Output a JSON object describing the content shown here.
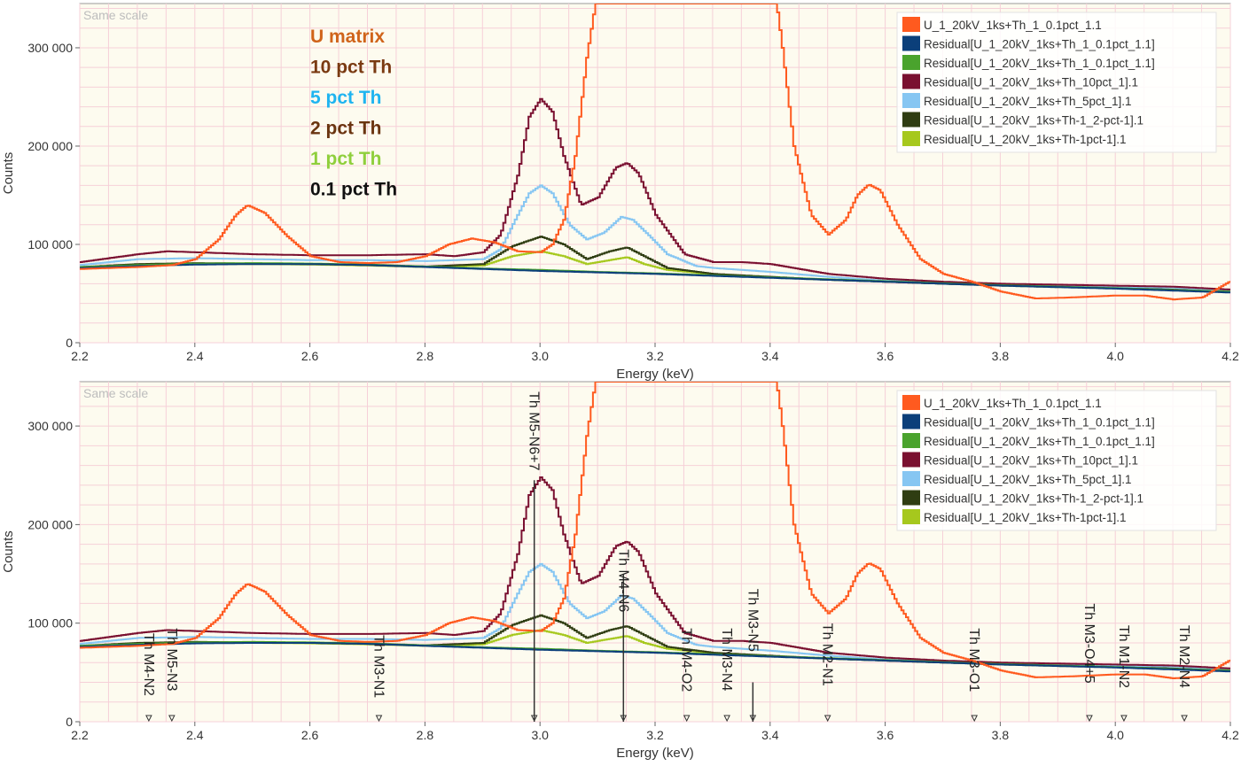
{
  "colors": {
    "u_matrix": "#ff5a1f",
    "res_blue": "#0b3f7a",
    "res_green": "#4aa32d",
    "th10": "#7a1030",
    "th5": "#86c6f2",
    "th2": "#2f3d12",
    "th1": "#a6c81d",
    "annot_u": "#d0641a",
    "annot_10": "#7a3a12",
    "annot_5": "#1fb4f0",
    "annot_2": "#6a3410",
    "annot_1": "#8fcf3c",
    "annot_01": "#111111"
  },
  "chart_data": [
    {
      "type": "line",
      "panel_note": "Same scale",
      "xlabel": "Energy (keV)",
      "ylabel": "Counts",
      "xlim": [
        2.2,
        4.2
      ],
      "ylim": [
        0,
        345000
      ],
      "x_ticks": [
        "2.2",
        "2.4",
        "2.6",
        "2.8",
        "3.0",
        "3.2",
        "3.4",
        "3.6",
        "3.8",
        "4.0",
        "4.2"
      ],
      "y_ticks": [
        "0",
        "100 000",
        "200 000",
        "300 000"
      ],
      "annotations": [
        {
          "text": "U matrix",
          "color_key": "annot_u"
        },
        {
          "text": "10 pct Th",
          "color_key": "annot_10"
        },
        {
          "text": "5 pct Th",
          "color_key": "annot_5"
        },
        {
          "text": "2 pct Th",
          "color_key": "annot_2"
        },
        {
          "text": "1 pct Th",
          "color_key": "annot_1"
        },
        {
          "text": "0.1 pct Th",
          "color_key": "annot_01"
        }
      ],
      "legend_position": "top-right",
      "legend": [
        "U_1_20kV_1ks+Th_1_0.1pct_1.1",
        "Residual[U_1_20kV_1ks+Th_1_0.1pct_1.1]",
        "Residual[U_1_20kV_1ks+Th_1_0.1pct_1.1]",
        "Residual[U_1_20kV_1ks+Th_10pct_1].1",
        "Residual[U_1_20kV_1ks+Th_5pct_1].1",
        "Residual[U_1_20kV_1ks+Th-1_2-pct-1].1",
        "Residual[U_1_20kV_1ks+Th-1pct-1].1"
      ],
      "series": [
        {
          "name": "U_1_20kV_1ks+Th_1_0.1pct_1.1",
          "color_key": "u_matrix",
          "points": [
            [
              2.2,
              75000
            ],
            [
              2.3,
              77000
            ],
            [
              2.36,
              79000
            ],
            [
              2.4,
              85000
            ],
            [
              2.44,
              105000
            ],
            [
              2.47,
              130000
            ],
            [
              2.49,
              140000
            ],
            [
              2.52,
              132000
            ],
            [
              2.56,
              108000
            ],
            [
              2.6,
              88000
            ],
            [
              2.65,
              82000
            ],
            [
              2.7,
              81000
            ],
            [
              2.75,
              82000
            ],
            [
              2.8,
              88000
            ],
            [
              2.84,
              100000
            ],
            [
              2.88,
              106000
            ],
            [
              2.92,
              102000
            ],
            [
              2.96,
              93000
            ],
            [
              3.0,
              92000
            ],
            [
              3.02,
              100000
            ],
            [
              3.04,
              125000
            ],
            [
              3.06,
              190000
            ],
            [
              3.08,
              290000
            ],
            [
              3.095,
              345000
            ],
            [
              3.1,
              345000
            ],
            [
              3.2,
              345000
            ],
            [
              3.3,
              345000
            ],
            [
              3.41,
              345000
            ],
            [
              3.42,
              300000
            ],
            [
              3.44,
              200000
            ],
            [
              3.47,
              130000
            ],
            [
              3.5,
              110000
            ],
            [
              3.53,
              125000
            ],
            [
              3.55,
              150000
            ],
            [
              3.57,
              161000
            ],
            [
              3.59,
              155000
            ],
            [
              3.62,
              120000
            ],
            [
              3.66,
              85000
            ],
            [
              3.7,
              70000
            ],
            [
              3.75,
              62000
            ],
            [
              3.8,
              52000
            ],
            [
              3.86,
              45000
            ],
            [
              3.92,
              46000
            ],
            [
              4.0,
              48000
            ],
            [
              4.05,
              48000
            ],
            [
              4.1,
              44000
            ],
            [
              4.15,
              46000
            ],
            [
              4.2,
              63000
            ]
          ]
        },
        {
          "name": "Residual[U_1_20kV_1ks+Th_1_0.1pct_1.1]",
          "color_key": "res_blue",
          "points": [
            [
              2.2,
              76000
            ],
            [
              2.3,
              78000
            ],
            [
              2.4,
              79500
            ],
            [
              2.5,
              80000
            ],
            [
              2.6,
              80000
            ],
            [
              2.7,
              79000
            ],
            [
              2.8,
              77000
            ],
            [
              2.9,
              75000
            ],
            [
              3.0,
              73000
            ],
            [
              3.1,
              71500
            ],
            [
              3.2,
              70000
            ],
            [
              3.3,
              68000
            ],
            [
              3.4,
              66000
            ],
            [
              3.5,
              64000
            ],
            [
              3.6,
              62000
            ],
            [
              3.7,
              60000
            ],
            [
              3.8,
              58000
            ],
            [
              3.9,
              56500
            ],
            [
              4.0,
              55000
            ],
            [
              4.1,
              53000
            ],
            [
              4.2,
              51000
            ]
          ]
        },
        {
          "name": "Residual[U_1_20kV_1ks+Th_1_0.1pct_1.1]",
          "color_key": "res_green",
          "points": [
            [
              2.2,
              77000
            ],
            [
              2.3,
              79000
            ],
            [
              2.4,
              80500
            ],
            [
              2.5,
              81000
            ],
            [
              2.6,
              80500
            ],
            [
              2.7,
              79500
            ],
            [
              2.8,
              77500
            ],
            [
              2.9,
              75500
            ],
            [
              3.0,
              74000
            ],
            [
              3.1,
              72000
            ],
            [
              3.2,
              70500
            ],
            [
              3.3,
              68500
            ],
            [
              3.4,
              66500
            ],
            [
              3.5,
              64500
            ],
            [
              3.6,
              62500
            ],
            [
              3.7,
              60500
            ],
            [
              3.8,
              58500
            ],
            [
              3.9,
              57000
            ],
            [
              4.0,
              55500
            ],
            [
              4.1,
              53500
            ],
            [
              4.2,
              52000
            ]
          ]
        },
        {
          "name": "Residual[U_1_20kV_1ks+Th_10pct_1].1",
          "color_key": "th10",
          "points": [
            [
              2.2,
              82000
            ],
            [
              2.3,
              90000
            ],
            [
              2.35,
              93000
            ],
            [
              2.4,
              92000
            ],
            [
              2.5,
              90000
            ],
            [
              2.6,
              89000
            ],
            [
              2.7,
              89000
            ],
            [
              2.8,
              90000
            ],
            [
              2.85,
              88000
            ],
            [
              2.9,
              92000
            ],
            [
              2.93,
              110000
            ],
            [
              2.96,
              170000
            ],
            [
              2.98,
              230000
            ],
            [
              3.0,
              248000
            ],
            [
              3.02,
              235000
            ],
            [
              3.04,
              190000
            ],
            [
              3.07,
              140000
            ],
            [
              3.1,
              148000
            ],
            [
              3.13,
              178000
            ],
            [
              3.15,
              183000
            ],
            [
              3.17,
              172000
            ],
            [
              3.2,
              130000
            ],
            [
              3.25,
              90000
            ],
            [
              3.3,
              82000
            ],
            [
              3.35,
              82000
            ],
            [
              3.4,
              80000
            ],
            [
              3.5,
              70000
            ],
            [
              3.6,
              65000
            ],
            [
              3.7,
              62000
            ],
            [
              3.8,
              60000
            ],
            [
              3.9,
              59000
            ],
            [
              4.0,
              58000
            ],
            [
              4.1,
              57000
            ],
            [
              4.2,
              54000
            ]
          ]
        },
        {
          "name": "Residual[U_1_20kV_1ks+Th_5pct_1].1",
          "color_key": "th5",
          "points": [
            [
              2.2,
              79000
            ],
            [
              2.3,
              85000
            ],
            [
              2.4,
              86000
            ],
            [
              2.5,
              85000
            ],
            [
              2.6,
              84000
            ],
            [
              2.7,
              84000
            ],
            [
              2.8,
              83000
            ],
            [
              2.9,
              85000
            ],
            [
              2.93,
              95000
            ],
            [
              2.96,
              130000
            ],
            [
              2.98,
              152000
            ],
            [
              3.0,
              160000
            ],
            [
              3.02,
              152000
            ],
            [
              3.05,
              120000
            ],
            [
              3.08,
              105000
            ],
            [
              3.11,
              112000
            ],
            [
              3.14,
              128000
            ],
            [
              3.16,
              125000
            ],
            [
              3.19,
              108000
            ],
            [
              3.22,
              90000
            ],
            [
              3.27,
              78000
            ],
            [
              3.3,
              76000
            ],
            [
              3.4,
              72000
            ],
            [
              3.5,
              67000
            ],
            [
              3.6,
              63000
            ],
            [
              3.7,
              61000
            ],
            [
              3.8,
              59000
            ],
            [
              3.9,
              58000
            ],
            [
              4.0,
              57000
            ],
            [
              4.1,
              56000
            ],
            [
              4.2,
              53000
            ]
          ]
        },
        {
          "name": "Residual[U_1_20kV_1ks+Th-1_2-pct-1].1",
          "color_key": "th2",
          "points": [
            [
              2.2,
              77000
            ],
            [
              2.3,
              80000
            ],
            [
              2.4,
              81000
            ],
            [
              2.5,
              80500
            ],
            [
              2.6,
              80000
            ],
            [
              2.7,
              79000
            ],
            [
              2.8,
              77500
            ],
            [
              2.9,
              80000
            ],
            [
              2.95,
              98000
            ],
            [
              3.0,
              108000
            ],
            [
              3.04,
              100000
            ],
            [
              3.08,
              85000
            ],
            [
              3.12,
              93000
            ],
            [
              3.15,
              97000
            ],
            [
              3.18,
              88000
            ],
            [
              3.22,
              76000
            ],
            [
              3.3,
              70000
            ],
            [
              3.4,
              67000
            ],
            [
              3.5,
              64000
            ],
            [
              3.6,
              62000
            ],
            [
              3.7,
              60000
            ],
            [
              3.8,
              58500
            ],
            [
              3.9,
              57000
            ],
            [
              4.0,
              56000
            ],
            [
              4.1,
              54000
            ],
            [
              4.2,
              52000
            ]
          ]
        },
        {
          "name": "Residual[U_1_20kV_1ks+Th-1pct-1].1",
          "color_key": "th1",
          "points": [
            [
              2.2,
              76000
            ],
            [
              2.3,
              79000
            ],
            [
              2.4,
              80000
            ],
            [
              2.5,
              80000
            ],
            [
              2.6,
              79500
            ],
            [
              2.7,
              78500
            ],
            [
              2.8,
              77000
            ],
            [
              2.9,
              78500
            ],
            [
              2.95,
              88000
            ],
            [
              3.0,
              93000
            ],
            [
              3.04,
              88000
            ],
            [
              3.08,
              80000
            ],
            [
              3.12,
              84000
            ],
            [
              3.15,
              87000
            ],
            [
              3.18,
              80000
            ],
            [
              3.22,
              74000
            ],
            [
              3.3,
              69500
            ],
            [
              3.4,
              66500
            ],
            [
              3.5,
              64000
            ],
            [
              3.6,
              62000
            ],
            [
              3.7,
              60000
            ],
            [
              3.8,
              58000
            ],
            [
              3.9,
              56500
            ],
            [
              4.0,
              55500
            ],
            [
              4.1,
              53500
            ],
            [
              4.2,
              51500
            ]
          ]
        }
      ]
    },
    {
      "type": "line",
      "panel_note": "Same scale",
      "xlabel": "Energy (keV)",
      "ylabel": "Counts",
      "xlim": [
        2.2,
        4.2
      ],
      "ylim": [
        0,
        345000
      ],
      "x_ticks": [
        "2.2",
        "2.4",
        "2.6",
        "2.8",
        "3.0",
        "3.2",
        "3.4",
        "3.6",
        "3.8",
        "4.0",
        "4.2"
      ],
      "y_ticks": [
        "0",
        "100 000",
        "200 000",
        "300 000"
      ],
      "legend_position": "top-right",
      "legend": [
        "U_1_20kV_1ks+Th_1_0.1pct_1.1",
        "Residual[U_1_20kV_1ks+Th_1_0.1pct_1.1]",
        "Residual[U_1_20kV_1ks+Th_1_0.1pct_1.1]",
        "Residual[U_1_20kV_1ks+Th_10pct_1].1",
        "Residual[U_1_20kV_1ks+Th_5pct_1].1",
        "Residual[U_1_20kV_1ks+Th-1_2-pct-1].1",
        "Residual[U_1_20kV_1ks+Th-1pct-1].1"
      ],
      "lines_markers": [
        {
          "label": "Th M4-N2",
          "energy": 2.32,
          "height": 0,
          "label_y": 90000
        },
        {
          "label": "Th M5-N3",
          "energy": 2.36,
          "height": 0,
          "label_y": 95000
        },
        {
          "label": "Th M3-N1",
          "energy": 2.72,
          "height": 0,
          "label_y": 88000
        },
        {
          "label": "Th M5-N6+7",
          "energy": 2.99,
          "height": 245000,
          "label_y": 335000
        },
        {
          "label": "Th M4-N6",
          "energy": 3.145,
          "height": 150000,
          "label_y": 175000
        },
        {
          "label": "Th M4-O2",
          "energy": 3.255,
          "height": 0,
          "label_y": 95000
        },
        {
          "label": "Th M3-N4",
          "energy": 3.325,
          "height": 0,
          "label_y": 95000
        },
        {
          "label": "Th M3-N5",
          "energy": 3.37,
          "height": 40000,
          "label_y": 135000
        },
        {
          "label": "Th M2-N1",
          "energy": 3.5,
          "height": 0,
          "label_y": 100000
        },
        {
          "label": "Th M3-O1",
          "energy": 3.755,
          "height": 0,
          "label_y": 95000
        },
        {
          "label": "Th M3-O4+5",
          "energy": 3.955,
          "height": 0,
          "label_y": 120000
        },
        {
          "label": "Th M1-N2",
          "energy": 4.015,
          "height": 0,
          "label_y": 98000
        },
        {
          "label": "Th M2-N4",
          "energy": 4.12,
          "height": 0,
          "label_y": 98000
        }
      ],
      "series_ref": "same as panel 1"
    }
  ]
}
